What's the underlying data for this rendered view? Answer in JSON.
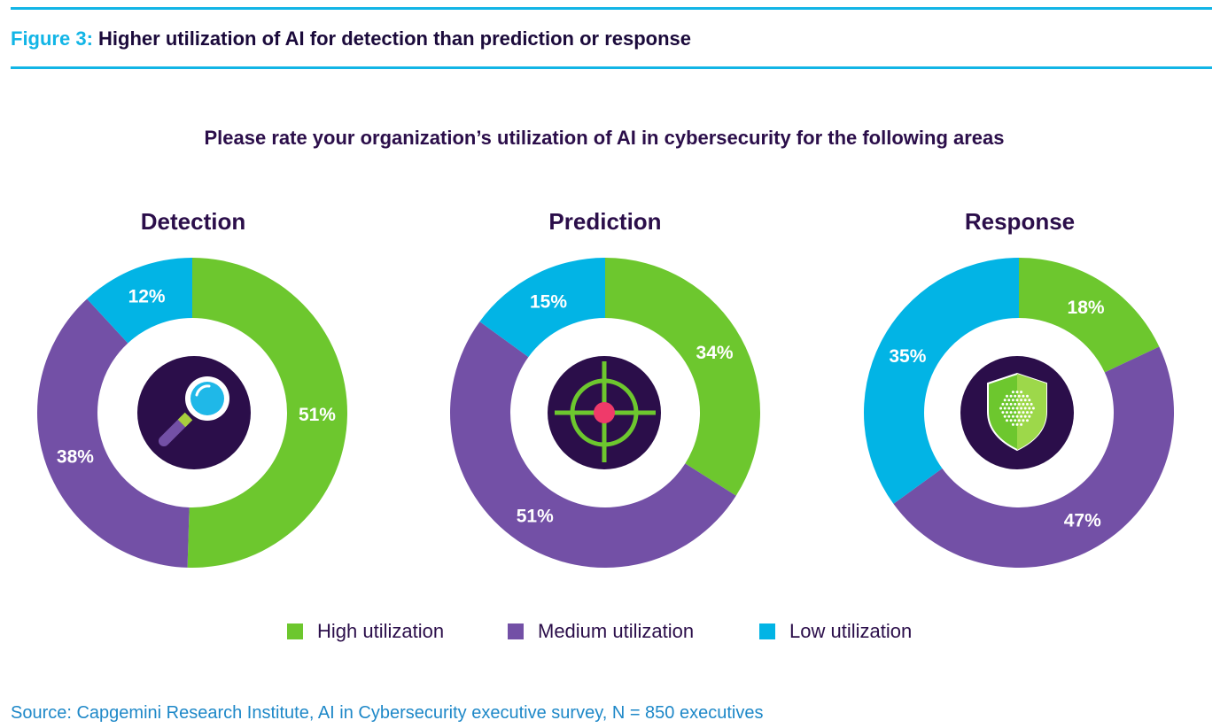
{
  "header": {
    "figure_label": "Figure 3:",
    "title": "Higher utilization of AI for detection than prediction or response"
  },
  "question": "Please rate your organization’s utilization of AI in cybersecurity for the following areas",
  "colors": {
    "high": "#6dc72e",
    "medium": "#7350a6",
    "low": "#02b4e5",
    "icon_bg": "#2b0e4a",
    "accent_rule": "#12b5e6"
  },
  "legend": {
    "high": "High utilization",
    "medium": "Medium utilization",
    "low": "Low utilization"
  },
  "chart_data": [
    {
      "type": "pie",
      "title": "Detection",
      "icon": "magnifier-icon",
      "categories": [
        "High utilization",
        "Medium utilization",
        "Low utilization"
      ],
      "values": [
        51,
        38,
        12
      ],
      "labels": [
        "51%",
        "38%",
        "12%"
      ]
    },
    {
      "type": "pie",
      "title": "Prediction",
      "icon": "crosshair-icon",
      "categories": [
        "High utilization",
        "Medium utilization",
        "Low utilization"
      ],
      "values": [
        34,
        51,
        15
      ],
      "labels": [
        "34%",
        "51%",
        "15%"
      ]
    },
    {
      "type": "pie",
      "title": "Response",
      "icon": "shield-icon",
      "categories": [
        "High utilization",
        "Medium utilization",
        "Low utilization"
      ],
      "values": [
        18,
        47,
        35
      ],
      "labels": [
        "18%",
        "47%",
        "35%"
      ]
    }
  ],
  "source": "Source: Capgemini Research Institute, AI in Cybersecurity executive survey, N = 850 executives"
}
